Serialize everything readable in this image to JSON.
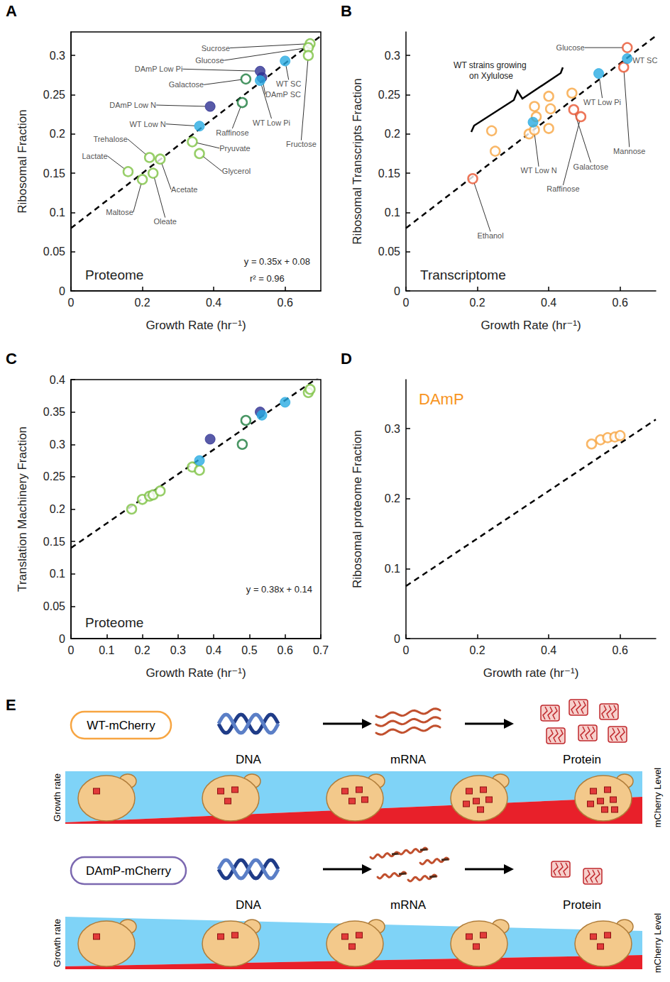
{
  "chart_data": [
    {
      "panel": "A",
      "type": "scatter",
      "xlabel": "Growth Rate (hr⁻¹)",
      "ylabel": "Ribosomal Fraction",
      "xlim": [
        0,
        0.7
      ],
      "xticks": [
        0,
        0.2,
        0.4,
        0.6
      ],
      "ylim": [
        0,
        0.33
      ],
      "yticks": [
        0,
        0.05,
        0.1,
        0.15,
        0.2,
        0.25,
        0.3
      ],
      "grid": false,
      "series": [
        {
          "color": "#7dc242",
          "marker": "hollow_circle",
          "x": [
            0.67,
            0.665,
            0.665,
            0.34,
            0.36,
            0.25,
            0.22,
            0.16,
            0.2,
            0.23
          ],
          "values": [
            0.315,
            0.31,
            0.3,
            0.19,
            0.175,
            0.168,
            0.17,
            0.152,
            0.142,
            0.15
          ],
          "labels": [
            "Sucrose",
            "Glucose",
            "Fructose",
            "Pryuvate",
            "Glycerol",
            "Acetate",
            "Trehalose",
            "Lactate",
            "Maltose",
            "Oleate"
          ]
        },
        {
          "color": "#1a7a3c",
          "marker": "hollow_circle",
          "x": [
            0.49,
            0.48
          ],
          "values": [
            0.27,
            0.24
          ],
          "labels": [
            "Galactose",
            "Raffinose"
          ]
        },
        {
          "color": "#2e3192",
          "marker": "circle",
          "x": [
            0.53,
            0.39,
            0.535
          ],
          "values": [
            0.28,
            0.235,
            0.272
          ],
          "labels": [
            "DAmP Low Pi",
            "DAmP Low N",
            "DAmP SC"
          ]
        },
        {
          "color": "#29abe2",
          "marker": "circle",
          "x": [
            0.6,
            0.53,
            0.36
          ],
          "values": [
            0.293,
            0.268,
            0.21
          ],
          "labels": [
            "WT SC",
            "WT Low Pi",
            "WT Low N"
          ]
        }
      ],
      "fit": {
        "slope": 0.35,
        "intercept": 0.08,
        "line_style": "dashed"
      },
      "annotations": [
        "Proteome",
        "y = 0.35x + 0.08",
        "r² = 0.96"
      ]
    },
    {
      "panel": "B",
      "type": "scatter",
      "xlabel": "Growth Rate (hr⁻¹)",
      "ylabel": "Ribosomal Transcripts Fraction",
      "xlim": [
        0,
        0.7
      ],
      "xticks": [
        0,
        0.2,
        0.4,
        0.6
      ],
      "ylim": [
        0,
        0.33
      ],
      "yticks": [
        0,
        0.05,
        0.1,
        0.15,
        0.2,
        0.25,
        0.3
      ],
      "grid": false,
      "series": [
        {
          "color": "#f7a541",
          "marker": "hollow_circle",
          "x": [
            0.24,
            0.25,
            0.345,
            0.36,
            0.365,
            0.36,
            0.4,
            0.405,
            0.4,
            0.465
          ],
          "values": [
            0.204,
            0.178,
            0.2,
            0.235,
            0.222,
            0.205,
            0.248,
            0.232,
            0.207,
            0.252
          ]
        },
        {
          "color": "#e9542f",
          "marker": "hollow_circle",
          "x": [
            0.62,
            0.61,
            0.47,
            0.49,
            0.187
          ],
          "values": [
            0.31,
            0.285,
            0.231,
            0.222,
            0.143
          ],
          "labels": [
            "Glucose",
            "Mannose",
            "Galactose",
            "Raffinose",
            "Ethanol"
          ]
        },
        {
          "color": "#29abe2",
          "marker": "circle",
          "x": [
            0.62,
            0.54,
            0.356
          ],
          "values": [
            0.296,
            0.277,
            0.215
          ],
          "labels": [
            "WT SC",
            "WT Low Pi",
            "WT Low N"
          ]
        }
      ],
      "fit": {
        "slope": 0.35,
        "intercept": 0.08,
        "line_style": "dashed"
      },
      "annotations": [
        "Transcriptome",
        "WT strains growing on Xylulose"
      ]
    },
    {
      "panel": "C",
      "type": "scatter",
      "xlabel": "Growth Rate (hr⁻¹)",
      "ylabel": "Translation Machinery Fraction",
      "xlim": [
        0,
        0.7
      ],
      "xticks": [
        0,
        0.1,
        0.2,
        0.3,
        0.4,
        0.5,
        0.6,
        0.7
      ],
      "ylim": [
        0,
        0.4
      ],
      "yticks": [
        0,
        0.05,
        0.1,
        0.15,
        0.2,
        0.25,
        0.3,
        0.35,
        0.4
      ],
      "grid": false,
      "series": [
        {
          "color": "#7dc242",
          "marker": "hollow_circle",
          "x": [
            0.17,
            0.2,
            0.22,
            0.23,
            0.25,
            0.34,
            0.36,
            0.665,
            0.67
          ],
          "values": [
            0.2,
            0.215,
            0.22,
            0.222,
            0.228,
            0.265,
            0.26,
            0.38,
            0.385
          ]
        },
        {
          "color": "#1a7a3c",
          "marker": "hollow_circle",
          "x": [
            0.49,
            0.48
          ],
          "values": [
            0.337,
            0.3
          ]
        },
        {
          "color": "#2e3192",
          "marker": "circle",
          "x": [
            0.39,
            0.53
          ],
          "values": [
            0.308,
            0.35
          ]
        },
        {
          "color": "#29abe2",
          "marker": "circle",
          "x": [
            0.36,
            0.535,
            0.6
          ],
          "values": [
            0.275,
            0.345,
            0.365
          ]
        }
      ],
      "fit": {
        "slope": 0.38,
        "intercept": 0.14,
        "line_style": "dashed"
      },
      "annotations": [
        "Proteome",
        "y = 0.38x + 0.14"
      ]
    },
    {
      "panel": "D",
      "type": "scatter",
      "xlabel": "Growth rate (hr⁻¹)",
      "ylabel": "Ribosomal proteome Fraction",
      "xlim": [
        0,
        0.7
      ],
      "xticks": [
        0,
        0.2,
        0.4,
        0.6
      ],
      "ylim": [
        0,
        0.37
      ],
      "yticks": [
        0,
        0.1,
        0.2,
        0.3
      ],
      "grid": false,
      "series": [
        {
          "color": "#f7a541",
          "marker": "hollow_circle",
          "x": [
            0.52,
            0.545,
            0.565,
            0.585,
            0.6
          ],
          "values": [
            0.278,
            0.284,
            0.287,
            0.288,
            0.29
          ]
        }
      ],
      "fit": {
        "slope": 0.34,
        "intercept": 0.075,
        "line_style": "dashed"
      },
      "annotations": [
        "DAmP"
      ]
    }
  ],
  "diagram": {
    "panel": "E",
    "rows": [
      {
        "strain": "WT-mCherry",
        "steps": [
          "DNA",
          "mRNA",
          "Protein"
        ],
        "left_axis": "Growth rate",
        "right_axis": "mCherry Level"
      },
      {
        "strain": "DAmP-mCherry",
        "steps": [
          "DNA",
          "mRNA",
          "Protein"
        ],
        "left_axis": "Growth rate",
        "right_axis": "mCherry Level"
      }
    ]
  }
}
